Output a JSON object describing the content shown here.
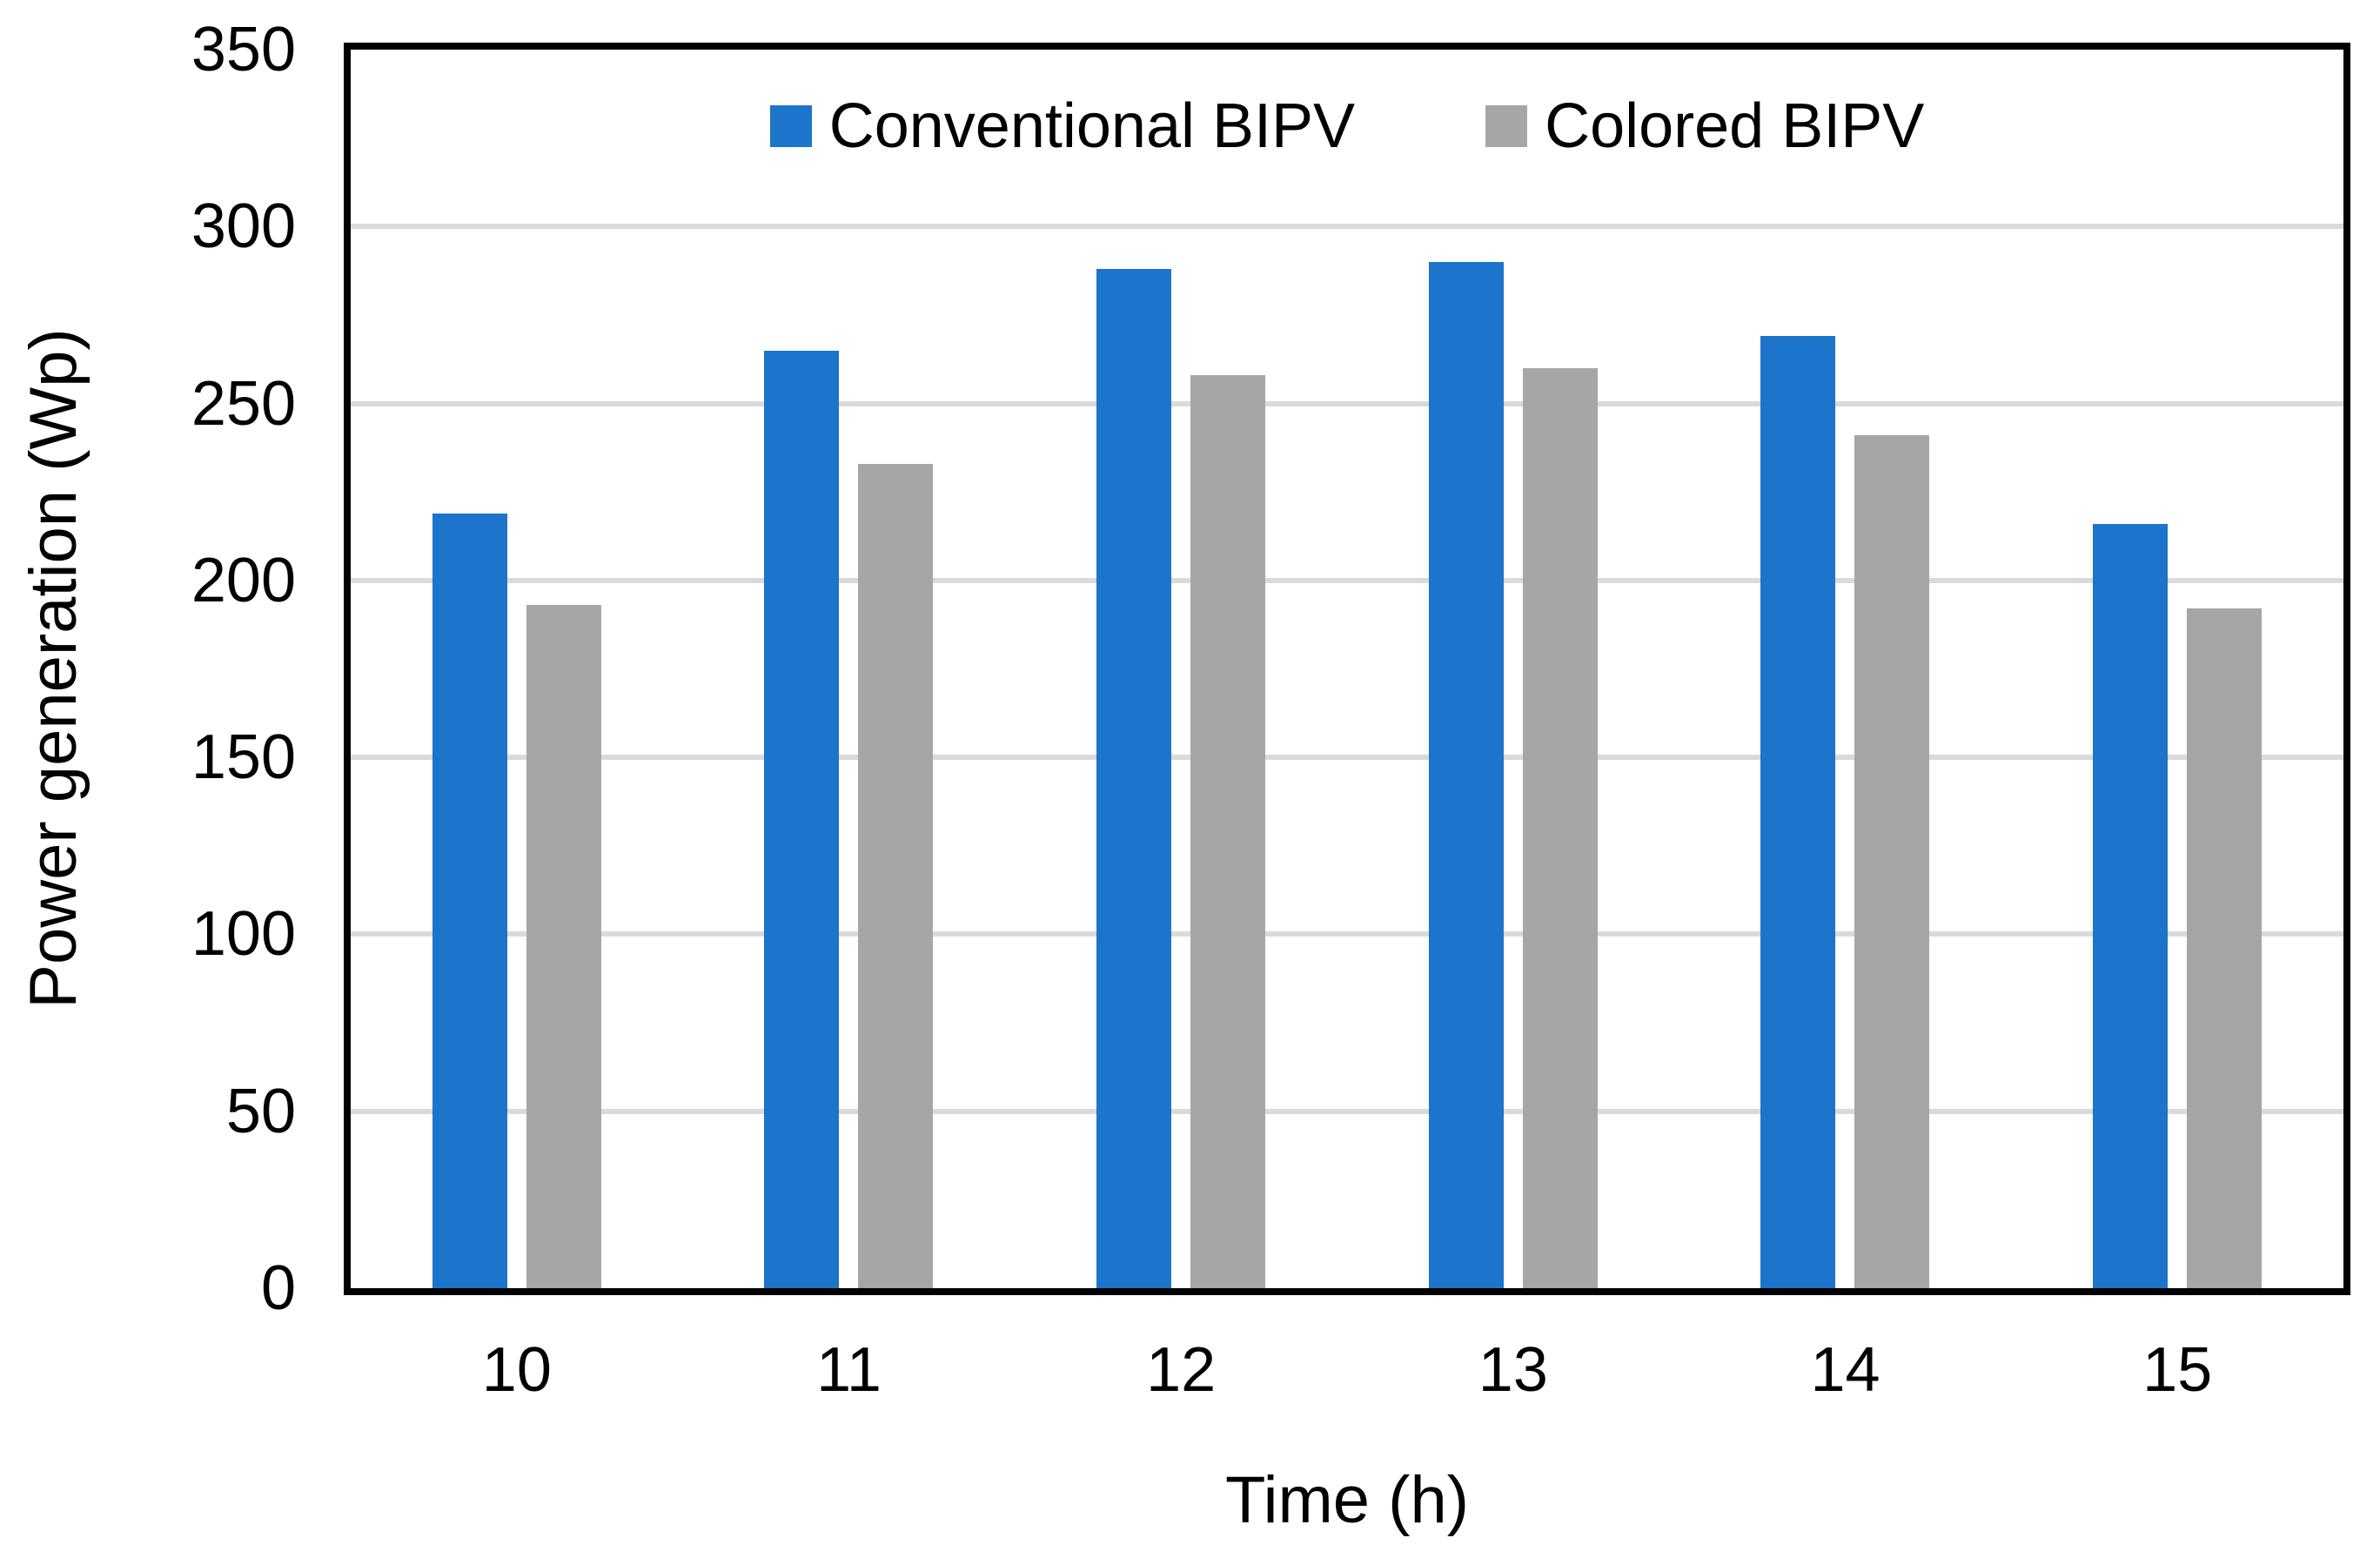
{
  "chart_data": {
    "type": "bar",
    "title": "",
    "categories": [
      "10",
      "11",
      "12",
      "13",
      "14",
      "15"
    ],
    "series": [
      {
        "name": "Conventional BIPV",
        "color": "#1C74CB",
        "values": [
          219,
          265,
          288,
          290,
          269,
          216
        ]
      },
      {
        "name": "Colored BIPV",
        "color": "#A6A6A6",
        "values": [
          193,
          233,
          258,
          260,
          241,
          192
        ]
      }
    ],
    "xlabel": "Time (h)",
    "ylabel": "Power generation (Wp)",
    "ylim": [
      0,
      350
    ],
    "ytick_step": 50,
    "ytick_labels": [
      "0",
      "50",
      "100",
      "150",
      "200",
      "250",
      "300",
      "350"
    ],
    "grid": "horizontal",
    "gridline_color": "#DADADA",
    "axis_color": "#000000",
    "text_color": "#000000",
    "background": "#FFFFFF",
    "legend_position": "top-center"
  }
}
